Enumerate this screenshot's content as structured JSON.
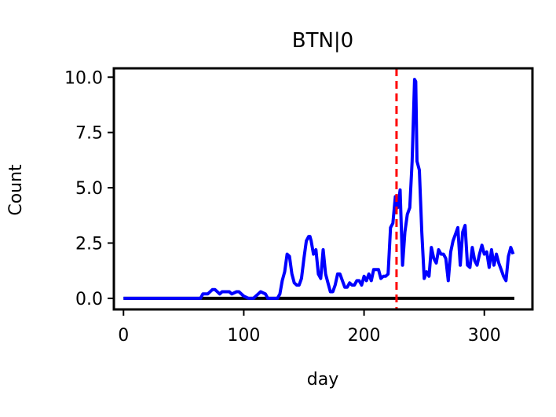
{
  "chart_data": {
    "type": "line",
    "title": "BTN|0",
    "xlabel": "day",
    "ylabel": "Count",
    "xlim": [
      -8,
      340
    ],
    "ylim": [
      -0.5,
      10.4
    ],
    "xticks": [
      0,
      100,
      200,
      300
    ],
    "yticks": [
      0.0,
      2.5,
      5.0,
      7.5,
      10.0
    ],
    "xtick_labels": [
      "0",
      "100",
      "200",
      "300"
    ],
    "ytick_labels": [
      "0.0",
      "2.5",
      "5.0",
      "7.5",
      "10.0"
    ],
    "grid": false,
    "vline": {
      "x": 227,
      "color": "#ff0000",
      "style": "dashed"
    },
    "series": [
      {
        "color": "#000000",
        "x": [
          0,
          325
        ],
        "y": [
          0,
          0
        ]
      },
      {
        "color": "#0000ff",
        "x": [
          0,
          64,
          66,
          70,
          74,
          76,
          80,
          82,
          86,
          88,
          90,
          94,
          96,
          100,
          104,
          108,
          112,
          114,
          118,
          120,
          122,
          128,
          130,
          132,
          134,
          136,
          138,
          140,
          142,
          144,
          146,
          148,
          150,
          152,
          154,
          155,
          156,
          158,
          160,
          162,
          164,
          166,
          168,
          170,
          172,
          174,
          176,
          178,
          180,
          182,
          184,
          186,
          188,
          190,
          192,
          194,
          196,
          198,
          200,
          202,
          204,
          206,
          208,
          210,
          212,
          214,
          216,
          218,
          220,
          222,
          224,
          226,
          228,
          230,
          232,
          234,
          236,
          238,
          240,
          242,
          243,
          244,
          246,
          248,
          250,
          252,
          254,
          256,
          258,
          260,
          262,
          264,
          266,
          268,
          270,
          272,
          274,
          276,
          278,
          280,
          282,
          284,
          286,
          288,
          290,
          292,
          294,
          296,
          298,
          300,
          302,
          304,
          306,
          308,
          310,
          312,
          314,
          316,
          318,
          320,
          322,
          324
        ],
        "y": [
          0,
          0,
          0.2,
          0.2,
          0.4,
          0.4,
          0.2,
          0.3,
          0.3,
          0.3,
          0.2,
          0.3,
          0.3,
          0.1,
          0.0,
          0.0,
          0.2,
          0.3,
          0.2,
          0.0,
          0.0,
          0.0,
          0.2,
          0.8,
          1.2,
          2.0,
          1.9,
          1.1,
          0.7,
          0.6,
          0.6,
          0.9,
          1.8,
          2.6,
          2.8,
          2.8,
          2.6,
          2.0,
          2.2,
          1.1,
          0.9,
          2.2,
          1.1,
          0.7,
          0.3,
          0.3,
          0.6,
          1.1,
          1.1,
          0.8,
          0.5,
          0.5,
          0.7,
          0.6,
          0.6,
          0.8,
          0.8,
          0.6,
          1.0,
          0.8,
          1.1,
          0.8,
          1.3,
          1.3,
          1.3,
          0.9,
          1.0,
          1.0,
          1.1,
          3.2,
          3.4,
          4.6,
          4.1,
          4.9,
          1.5,
          3.0,
          3.8,
          4.1,
          6.2,
          9.9,
          9.8,
          6.2,
          5.8,
          3.0,
          0.9,
          1.2,
          1.0,
          2.3,
          1.8,
          1.6,
          2.2,
          2.0,
          2.0,
          1.8,
          0.8,
          2.1,
          2.6,
          2.9,
          3.2,
          1.5,
          3.0,
          3.3,
          1.5,
          1.4,
          2.3,
          1.7,
          1.5,
          2.0,
          2.4,
          2.0,
          2.1,
          1.4,
          2.2,
          1.5,
          2.0,
          1.6,
          1.3,
          1.0,
          0.8,
          1.9,
          2.3,
          2.0
        ]
      }
    ]
  }
}
